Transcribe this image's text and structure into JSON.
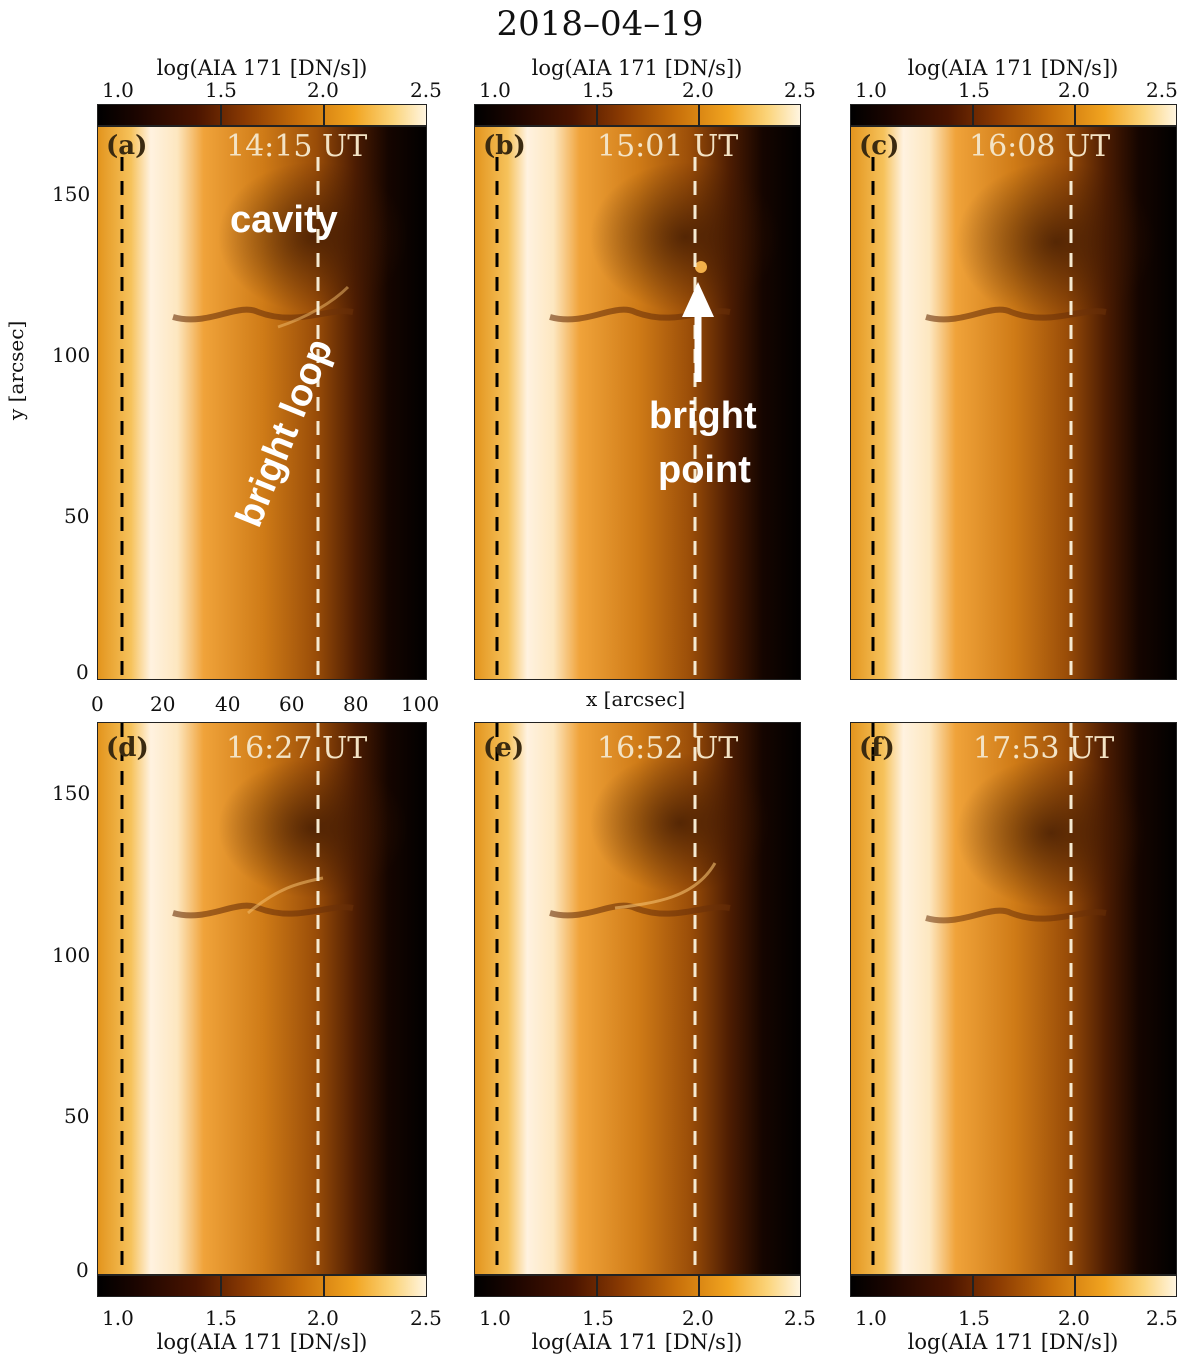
{
  "figure_title": "2018–04–19",
  "colorbar": {
    "label": "log(AIA 171 [DN/s])",
    "ticks": [
      "1.0",
      "1.5",
      "2.0",
      "2.5"
    ]
  },
  "axes": {
    "xlabel": "x [arcsec]",
    "ylabel": "y [arcsec]",
    "xticks": [
      "0",
      "20",
      "40",
      "60",
      "80",
      "100"
    ],
    "yticks": [
      "0",
      "50",
      "100",
      "150"
    ]
  },
  "panels": [
    {
      "label": "(a)",
      "time": "14:15 UT"
    },
    {
      "label": "(b)",
      "time": "15:01 UT"
    },
    {
      "label": "(c)",
      "time": "16:08 UT"
    },
    {
      "label": "(d)",
      "time": "16:27 UT"
    },
    {
      "label": "(e)",
      "time": "16:52 UT"
    },
    {
      "label": "(f)",
      "time": "17:53 UT"
    }
  ],
  "annotations": {
    "cavity": "cavity",
    "bright_loop": "bright loop",
    "bright_point_line1": "bright",
    "bright_point_line2": "point"
  },
  "colors": {
    "limb": "#fff4e4",
    "corona": "#d27a14",
    "background": "#000000",
    "dashed_left": "#000000",
    "dashed_right": "#f5ead2"
  }
}
